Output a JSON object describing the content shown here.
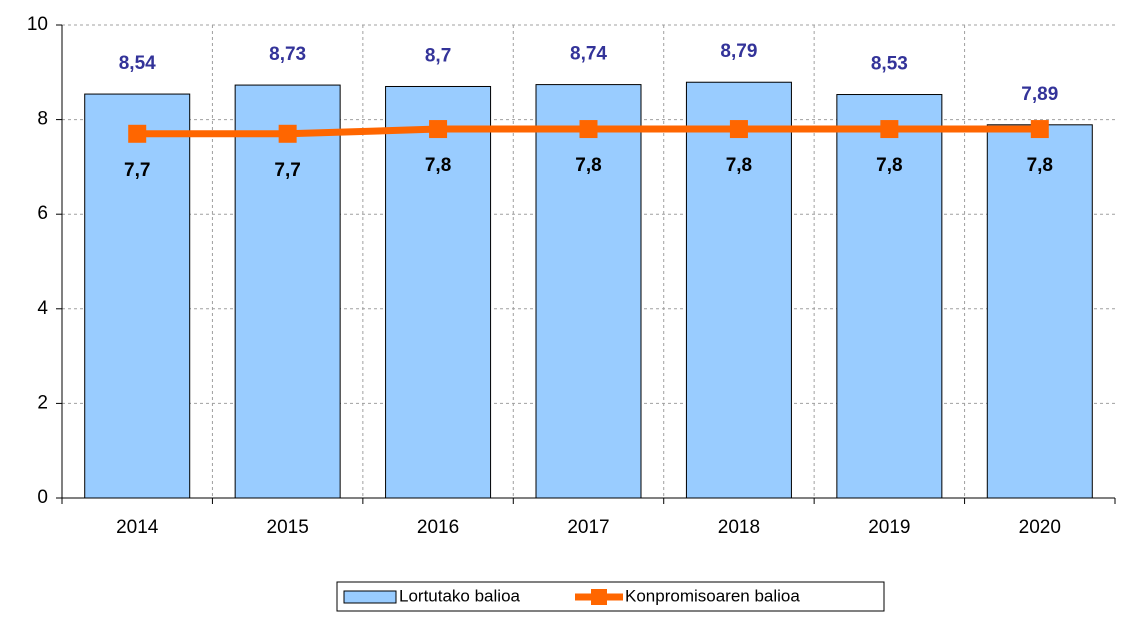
{
  "chart_data": {
    "type": "bar",
    "categories": [
      "2014",
      "2015",
      "2016",
      "2017",
      "2018",
      "2019",
      "2020"
    ],
    "series": [
      {
        "name": "Lortutako balioa",
        "type": "bar",
        "color": "#99ccff",
        "label_color": "#333399",
        "values": [
          8.54,
          8.73,
          8.7,
          8.74,
          8.79,
          8.53,
          7.89
        ],
        "value_labels": [
          "8,54",
          "8,73",
          "8,7",
          "8,74",
          "8,79",
          "8,53",
          "7,89"
        ]
      },
      {
        "name": "Konpromisoaren balioa",
        "type": "line",
        "color": "#ff6600",
        "label_color": "#000000",
        "values": [
          7.7,
          7.7,
          7.8,
          7.8,
          7.8,
          7.8,
          7.8
        ],
        "value_labels": [
          "7,7",
          "7,7",
          "7,8",
          "7,8",
          "7,8",
          "7,8",
          "7,8"
        ]
      }
    ],
    "ylim": [
      0,
      10
    ],
    "yticks": [
      0,
      2,
      4,
      6,
      8,
      10
    ],
    "grid": true,
    "legend": "bottom"
  }
}
